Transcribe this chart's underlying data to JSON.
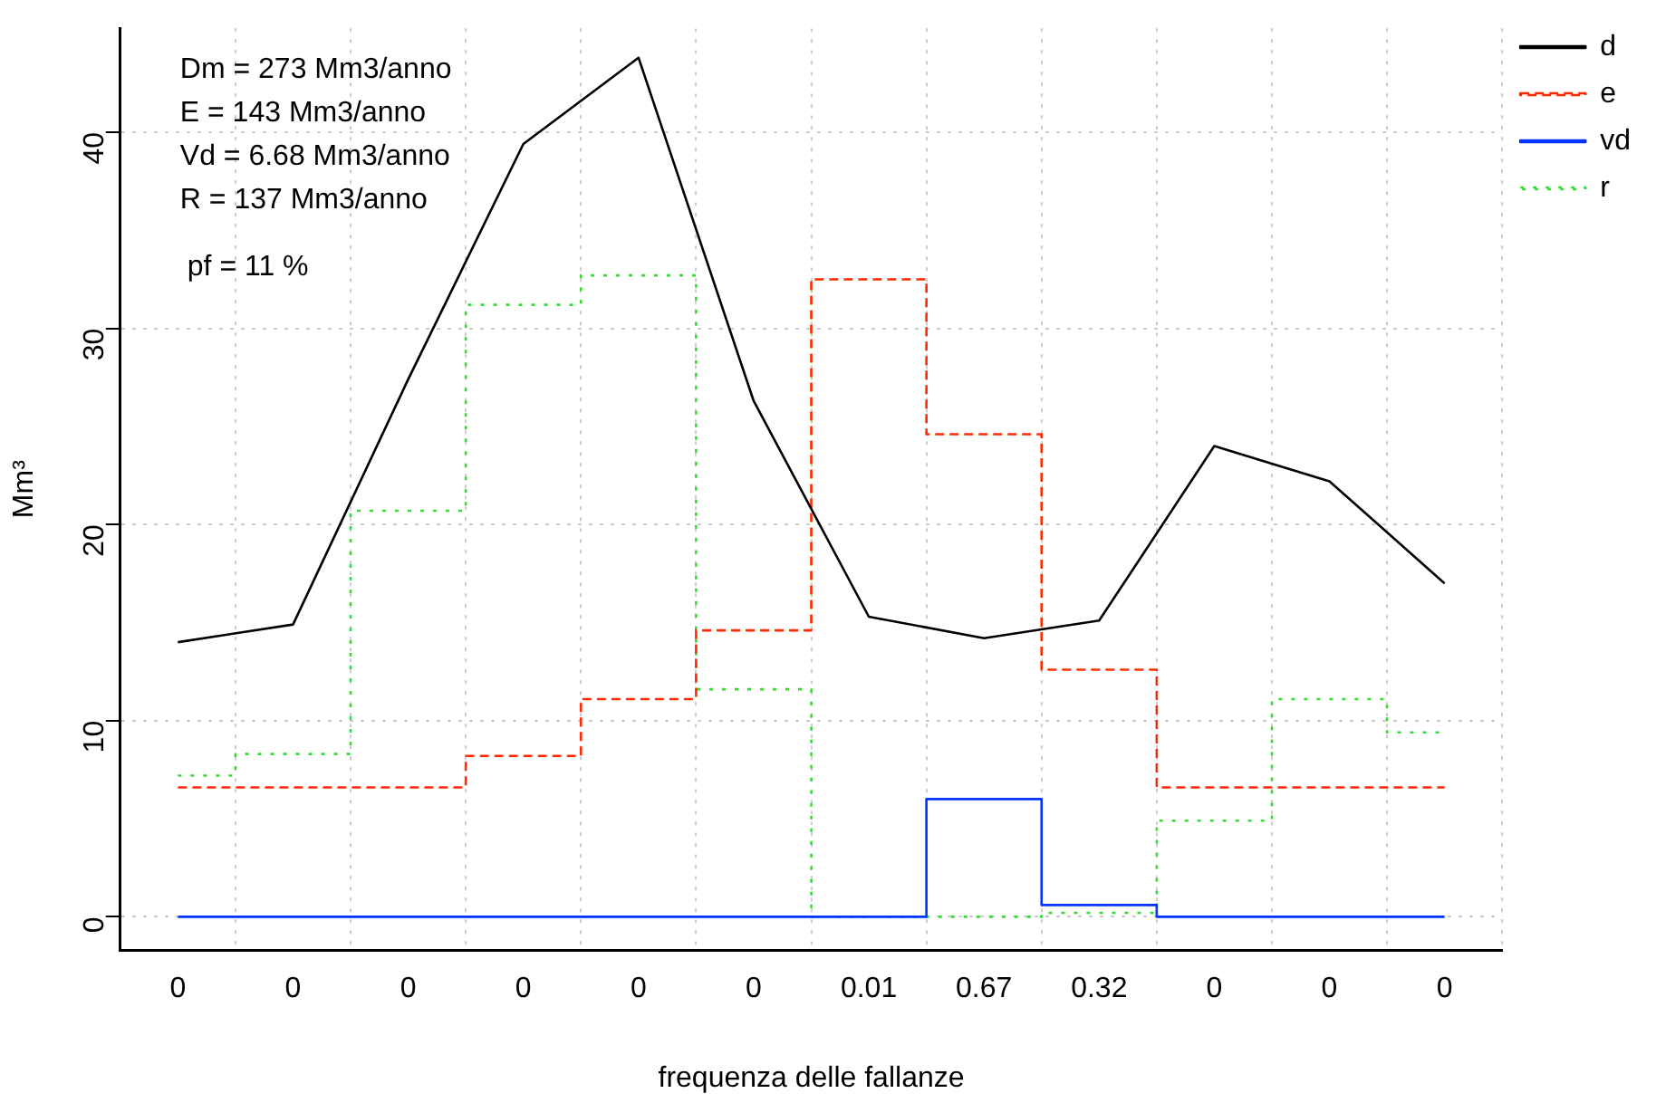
{
  "chart_data": {
    "type": "line",
    "xlabel": "frequenza delle fallanze",
    "ylabel": "Mm³",
    "categories": [
      "0",
      "0",
      "0",
      "0",
      "0",
      "0",
      "0.01",
      "0.67",
      "0.32",
      "0",
      "0",
      "0"
    ],
    "series": [
      {
        "name": "d",
        "type": "line",
        "color": "#000000",
        "line_style": "solid",
        "values": [
          14.0,
          14.9,
          27.4,
          39.4,
          43.8,
          26.3,
          15.3,
          14.2,
          15.1,
          24.0,
          22.2,
          17.0
        ]
      },
      {
        "name": "e",
        "type": "step",
        "color": "#ff2a00",
        "line_style": "dashed",
        "values": [
          6.6,
          6.6,
          6.6,
          8.2,
          11.1,
          14.6,
          32.5,
          24.6,
          12.6,
          6.6,
          6.6,
          6.6
        ]
      },
      {
        "name": "vd",
        "type": "step",
        "color": "#0033ff",
        "line_style": "solid",
        "values": [
          0,
          0,
          0,
          0,
          0,
          0,
          0,
          6.0,
          0.6,
          0,
          0,
          0
        ]
      },
      {
        "name": "r",
        "type": "step",
        "color": "#33dd33",
        "line_style": "dotted",
        "values": [
          7.2,
          8.3,
          20.7,
          31.2,
          32.7,
          11.6,
          0,
          0,
          0.2,
          4.9,
          11.1,
          9.4
        ]
      }
    ],
    "ylim": [
      -1.7,
      45.3
    ],
    "yticks": [
      0,
      10,
      20,
      30,
      40
    ],
    "grid": true,
    "legend": "right",
    "marker": "none",
    "annotations": [
      "Dm = 273 Mm3/anno",
      "E = 143 Mm3/anno",
      "Vd = 6.68 Mm3/anno",
      "R = 137 Mm3/anno",
      "pf = 11 %"
    ]
  }
}
